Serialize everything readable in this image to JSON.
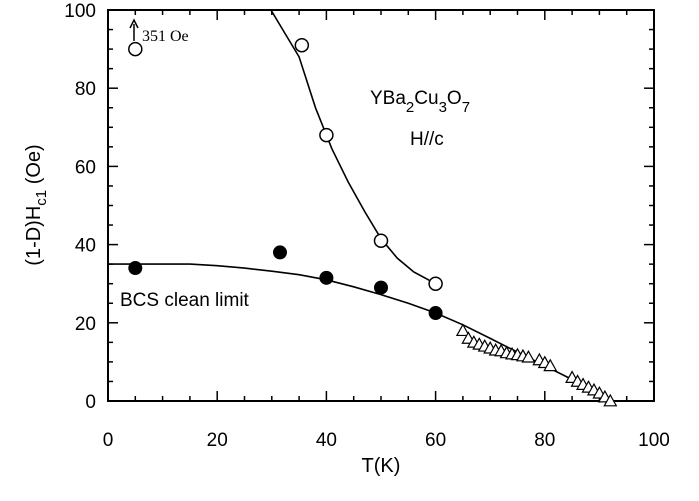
{
  "chart_data": {
    "type": "scatter",
    "xlabel": "T(K)",
    "ylabel": "(1-D)H",
    "ylabel_sub": "c1",
    "ylabel_unit": " (Oe)",
    "xlim": [
      0,
      100
    ],
    "ylim": [
      0,
      100
    ],
    "xticks": [
      "0",
      "20",
      "40",
      "60",
      "80",
      "100"
    ],
    "yticks": [
      "0",
      "20",
      "40",
      "60",
      "80",
      "100"
    ],
    "grid": false,
    "legend": "none",
    "series": [
      {
        "marker": "open-circle",
        "x": [
          5,
          35.5,
          40,
          50,
          60
        ],
        "y": [
          90,
          91,
          68,
          41,
          30
        ]
      },
      {
        "marker": "filled-circle",
        "x": [
          5,
          31.5,
          40,
          50,
          60
        ],
        "y": [
          34,
          38,
          31.5,
          29,
          22.5
        ]
      },
      {
        "marker": "open-triangle",
        "x": [
          65,
          66,
          67,
          68,
          69,
          70,
          71,
          72,
          73,
          74,
          75,
          76,
          77,
          79,
          80,
          81,
          85,
          86,
          87,
          88,
          89,
          90,
          91,
          92
        ],
        "y": [
          18,
          16,
          15,
          14.5,
          14,
          13.5,
          13,
          12.8,
          12.3,
          12,
          11.8,
          11.5,
          11.2,
          10.5,
          9.8,
          9,
          6,
          5,
          4.2,
          3.5,
          2.8,
          2,
          1,
          0
        ]
      }
    ],
    "fits": [
      {
        "x": [
          29,
          32,
          35,
          38,
          41,
          44,
          47,
          50,
          53,
          56,
          60
        ],
        "y": [
          102,
          95,
          88,
          75,
          64.5,
          56,
          48.5,
          41.5,
          36.5,
          33,
          30
        ]
      },
      {
        "x": [
          0,
          5,
          10,
          15,
          20,
          25,
          30,
          35,
          40,
          45,
          50,
          55,
          60,
          65,
          70,
          75,
          80,
          85,
          90,
          92
        ],
        "y": [
          35,
          35,
          35,
          35,
          34.6,
          34,
          33.2,
          32.3,
          31,
          29.2,
          27.2,
          25,
          22.5,
          19.5,
          16,
          12.5,
          9,
          5.5,
          1.8,
          0
        ]
      }
    ],
    "annotations": {
      "arrow_note": "351 Oe",
      "compound_parts": [
        "YBa",
        "2",
        "Cu",
        "3",
        "O",
        "7"
      ],
      "field_dir": "H//c",
      "curve_label": "BCS  clean  limit"
    }
  }
}
